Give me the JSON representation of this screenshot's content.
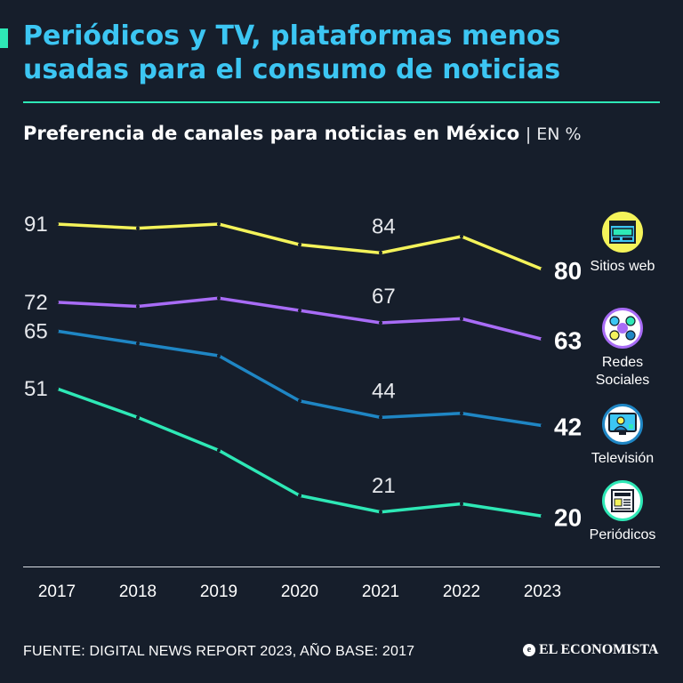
{
  "header": {
    "title": "Periódicos y TV, plataformas menos usadas para el consumo de noticias",
    "subtitle": "Preferencia de canales para noticias en México",
    "unit": "| EN %"
  },
  "chart_data": {
    "type": "line",
    "title": "Preferencia de canales para noticias en México",
    "unit": "%",
    "categories": [
      "2017",
      "2018",
      "2019",
      "2020",
      "2021",
      "2022",
      "2023"
    ],
    "ylim": [
      15,
      95
    ],
    "grid": false,
    "series": [
      {
        "name": "Sitios web",
        "color": "#f4f35a",
        "values": [
          91,
          90,
          91,
          86,
          84,
          88,
          80
        ],
        "labels": {
          "0": "91",
          "4": "84",
          "6": "80"
        }
      },
      {
        "name": "Redes Sociales",
        "color": "#a86cf6",
        "values": [
          72,
          71,
          73,
          70,
          67,
          68,
          63
        ],
        "labels": {
          "0": "72",
          "4": "67",
          "6": "63"
        }
      },
      {
        "name": "Televisión",
        "color": "#1f86c4",
        "values": [
          65,
          62,
          59,
          48,
          44,
          45,
          42
        ],
        "labels": {
          "0": "65",
          "4": "44",
          "6": "42"
        }
      },
      {
        "name": "Periódicos",
        "color": "#2ee8b6",
        "values": [
          51,
          44,
          36,
          25,
          21,
          23,
          20
        ],
        "labels": {
          "0": "51",
          "4": "21",
          "6": "20"
        }
      }
    ]
  },
  "legend": [
    {
      "label": "Sitios web",
      "icon": "website-icon"
    },
    {
      "label": "Redes Sociales",
      "icon": "social-media-icon"
    },
    {
      "label": "Televisión",
      "icon": "television-icon"
    },
    {
      "label": "Periódicos",
      "icon": "newspaper-icon"
    }
  ],
  "footer": {
    "source": "FUENTE: DIGITAL NEWS REPORT 2023, AÑO BASE: 2017",
    "logo": "EL ECONOMISTA"
  },
  "colors": {
    "background": "#161e2b",
    "title": "#3cc6f3",
    "accent": "#2ee8b6"
  }
}
